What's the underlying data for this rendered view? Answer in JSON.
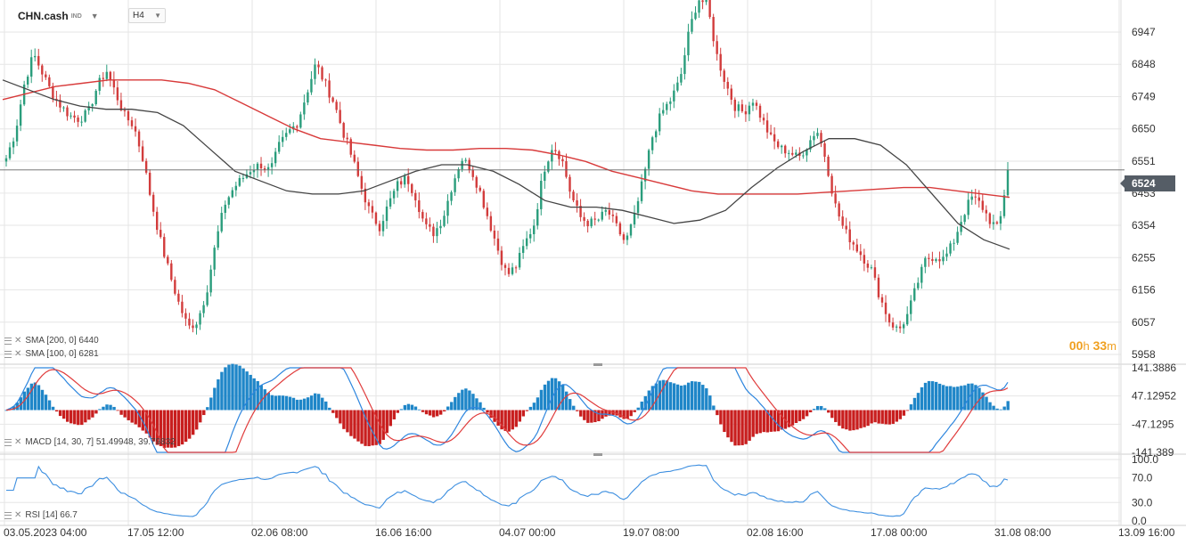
{
  "header": {
    "symbol": "CHN.cash",
    "symbol_tag": "IND",
    "timeframe": "H4"
  },
  "current_price_label": "6524",
  "countdown": {
    "hours": "00",
    "h": "h",
    "minutes": "33",
    "m": "m"
  },
  "indicators": {
    "sma200": "SMA [200, 0] 6440",
    "sma100": "SMA [100, 0] 6281",
    "macd": "MACD [14, 30, 7] 51.49948, 39.79832",
    "rsi": "RSI [14] 66.7"
  },
  "colors": {
    "up": "#2a9d7c",
    "down": "#d23c3c",
    "sma200": "#d83a3a",
    "sma100": "#444444",
    "macd_line": "#2e86de",
    "signal_line": "#e03c3c",
    "hist_pos": "#1f86c8",
    "hist_neg": "#c81e1e",
    "rsi": "#3d8fe0",
    "grid": "#e6e6e6",
    "axis_text": "#333333",
    "price_line": "#666666"
  },
  "chart_data": {
    "type": "candlestick",
    "price_axis": {
      "ticks": [
        6947,
        6848,
        6749,
        6650,
        6551,
        6453,
        6354,
        6255,
        6156,
        6057,
        5958
      ],
      "current": 6524
    },
    "time_axis": [
      "03.05.2023  04:00",
      "17.05  12:00",
      "02.06  08:00",
      "16.06  16:00",
      "04.07  00:00",
      "19.07  08:00",
      "02.08  16:00",
      "17.08  00:00",
      "31.08  08:00",
      "13.09  16:00"
    ],
    "close_anchors": [
      6560,
      6640,
      6790,
      6880,
      6820,
      6760,
      6720,
      6690,
      6680,
      6700,
      6780,
      6830,
      6760,
      6690,
      6660,
      6560,
      6420,
      6300,
      6200,
      6110,
      6040,
      6060,
      6150,
      6300,
      6420,
      6470,
      6500,
      6530,
      6540,
      6520,
      6600,
      6640,
      6670,
      6760,
      6850,
      6790,
      6730,
      6640,
      6560,
      6470,
      6390,
      6350,
      6420,
      6480,
      6500,
      6440,
      6350,
      6330,
      6380,
      6480,
      6560,
      6530,
      6460,
      6370,
      6280,
      6200,
      6230,
      6300,
      6360,
      6520,
      6600,
      6560,
      6450,
      6380,
      6360,
      6370,
      6400,
      6350,
      6300,
      6380,
      6500,
      6630,
      6700,
      6740,
      6800,
      6950,
      7050,
      7030,
      6880,
      6790,
      6720,
      6700,
      6740,
      6680,
      6620,
      6590,
      6580,
      6560,
      6600,
      6650,
      6560,
      6420,
      6340,
      6300,
      6260,
      6220,
      6130,
      6060,
      6030,
      6080,
      6170,
      6250,
      6260,
      6250,
      6300,
      6380,
      6440,
      6420,
      6370,
      6340,
      6524
    ],
    "sma200": [
      6740,
      6760,
      6780,
      6790,
      6800,
      6800,
      6800,
      6790,
      6770,
      6730,
      6690,
      6650,
      6620,
      6610,
      6600,
      6590,
      6585,
      6585,
      6590,
      6590,
      6585,
      6570,
      6550,
      6520,
      6500,
      6480,
      6460,
      6450,
      6450,
      6450,
      6450,
      6455,
      6460,
      6465,
      6470,
      6470,
      6460,
      6450,
      6440
    ],
    "sma100": [
      6800,
      6770,
      6740,
      6720,
      6710,
      6710,
      6700,
      6660,
      6590,
      6520,
      6490,
      6460,
      6450,
      6450,
      6460,
      6490,
      6520,
      6540,
      6540,
      6520,
      6480,
      6430,
      6410,
      6410,
      6400,
      6380,
      6360,
      6370,
      6400,
      6470,
      6530,
      6580,
      6620,
      6620,
      6600,
      6540,
      6450,
      6360,
      6310,
      6281
    ],
    "macd_range": [
      -141.389,
      141.3886
    ],
    "macd_ticks": [
      "141.3886",
      "47.12952",
      "-47.1295",
      "-141.389"
    ],
    "macd": {
      "fast": 14,
      "slow": 30,
      "signal": 7,
      "value": 51.49948,
      "signal_value": 39.79832
    },
    "rsi": {
      "period": 14,
      "value": 66.7,
      "ticks": [
        "100.0",
        "70.0",
        "30.0",
        "0.0"
      ]
    }
  }
}
